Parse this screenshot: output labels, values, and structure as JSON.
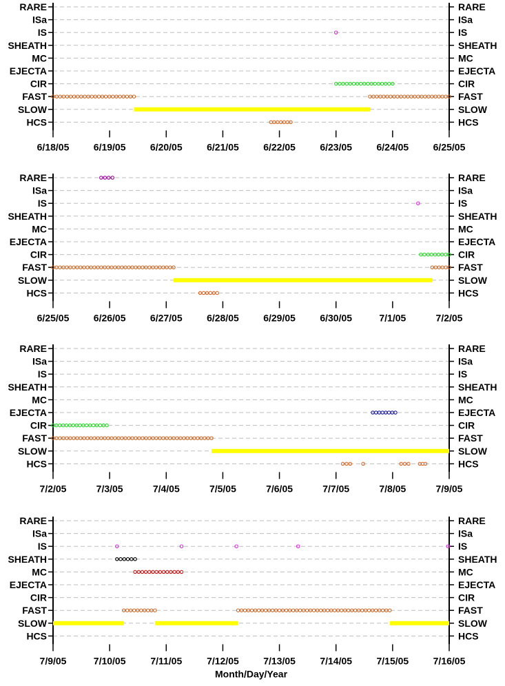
{
  "colors": {
    "RARE": "#990099",
    "IS": "#dd22dd",
    "SHEATH": "#000000",
    "MC": "#cc1111",
    "EJECTA": "#1a1a99",
    "CIR": "#22dd22",
    "FAST": "#cc6622",
    "SLOW": "#ffff00",
    "HCS": "#dd6622"
  },
  "chart_data": [
    {
      "type": "scatter",
      "categories": [
        "RARE",
        "ISa",
        "IS",
        "SHEATH",
        "MC",
        "EJECTA",
        "CIR",
        "FAST",
        "SLOW",
        "HCS"
      ],
      "xlim": [
        "6/18/05",
        "6/25/05"
      ],
      "x_ticks": [
        "6/18/05",
        "6/19/05",
        "6/20/05",
        "6/21/05",
        "6/22/05",
        "6/23/05",
        "6/24/05",
        "6/25/05"
      ],
      "grid": true,
      "series": [
        {
          "name": "IS",
          "segments": [
            [
              5.0,
              5.0
            ]
          ]
        },
        {
          "name": "CIR",
          "segments": [
            [
              5.0,
              6.0
            ]
          ]
        },
        {
          "name": "FAST",
          "segments": [
            [
              0.0,
              1.43
            ],
            [
              5.6,
              7.0
            ]
          ]
        },
        {
          "name": "SLOW",
          "segments": [
            [
              1.43,
              5.6
            ]
          ]
        },
        {
          "name": "HCS",
          "segments": [
            [
              3.85,
              4.2
            ]
          ]
        }
      ]
    },
    {
      "type": "scatter",
      "categories": [
        "RARE",
        "ISa",
        "IS",
        "SHEATH",
        "MC",
        "EJECTA",
        "CIR",
        "FAST",
        "SLOW",
        "HCS"
      ],
      "xlim": [
        "6/25/05",
        "7/2/05"
      ],
      "x_ticks": [
        "6/25/05",
        "6/26/05",
        "6/27/05",
        "6/28/05",
        "6/29/05",
        "6/30/05",
        "7/1/05",
        "7/2/05"
      ],
      "grid": true,
      "series": [
        {
          "name": "RARE",
          "segments": [
            [
              0.85,
              1.05
            ]
          ]
        },
        {
          "name": "IS",
          "segments": [
            [
              6.45,
              6.45
            ]
          ]
        },
        {
          "name": "CIR",
          "segments": [
            [
              6.5,
              7.0
            ]
          ]
        },
        {
          "name": "FAST",
          "segments": [
            [
              0.0,
              2.13
            ],
            [
              6.7,
              7.0
            ]
          ]
        },
        {
          "name": "SLOW",
          "segments": [
            [
              2.13,
              6.7
            ]
          ]
        },
        {
          "name": "HCS",
          "segments": [
            [
              2.6,
              2.9
            ]
          ]
        }
      ]
    },
    {
      "type": "scatter",
      "categories": [
        "RARE",
        "ISa",
        "IS",
        "SHEATH",
        "MC",
        "EJECTA",
        "CIR",
        "FAST",
        "SLOW",
        "HCS"
      ],
      "xlim": [
        "7/2/05",
        "7/9/05"
      ],
      "x_ticks": [
        "7/2/05",
        "7/3/05",
        "7/4/05",
        "7/5/05",
        "7/6/05",
        "7/7/05",
        "7/8/05",
        "7/9/05"
      ],
      "grid": true,
      "series": [
        {
          "name": "EJECTA",
          "segments": [
            [
              5.65,
              6.05
            ]
          ]
        },
        {
          "name": "CIR",
          "segments": [
            [
              0.0,
              0.95
            ]
          ]
        },
        {
          "name": "FAST",
          "segments": [
            [
              0.0,
              2.8
            ]
          ]
        },
        {
          "name": "SLOW",
          "segments": [
            [
              2.8,
              7.0
            ]
          ]
        },
        {
          "name": "HCS",
          "segments": [
            [
              5.12,
              5.25
            ],
            [
              5.48,
              5.48
            ],
            [
              6.15,
              6.28
            ],
            [
              6.48,
              6.58
            ]
          ]
        }
      ]
    },
    {
      "type": "scatter",
      "categories": [
        "RARE",
        "ISa",
        "IS",
        "SHEATH",
        "MC",
        "EJECTA",
        "CIR",
        "FAST",
        "SLOW",
        "HCS"
      ],
      "xlim": [
        "7/9/05",
        "7/16/05"
      ],
      "x_ticks": [
        "7/9/05",
        "7/10/05",
        "7/11/05",
        "7/12/05",
        "7/13/05",
        "7/14/05",
        "7/15/05",
        "7/16/05"
      ],
      "xlabel": "Month/Day/Year",
      "grid": true,
      "series": [
        {
          "name": "IS",
          "segments": [
            [
              1.13,
              1.13
            ],
            [
              2.27,
              2.27
            ],
            [
              3.24,
              3.24
            ],
            [
              4.33,
              4.33
            ],
            [
              6.98,
              6.98
            ]
          ]
        },
        {
          "name": "SHEATH",
          "segments": [
            [
              1.13,
              1.45
            ]
          ]
        },
        {
          "name": "MC",
          "segments": [
            [
              1.45,
              2.27
            ]
          ]
        },
        {
          "name": "FAST",
          "segments": [
            [
              1.25,
              1.8
            ],
            [
              3.27,
              5.95
            ]
          ]
        },
        {
          "name": "SLOW",
          "segments": [
            [
              0.0,
              1.25
            ],
            [
              1.8,
              3.27
            ],
            [
              5.95,
              7.0
            ]
          ]
        }
      ]
    }
  ]
}
